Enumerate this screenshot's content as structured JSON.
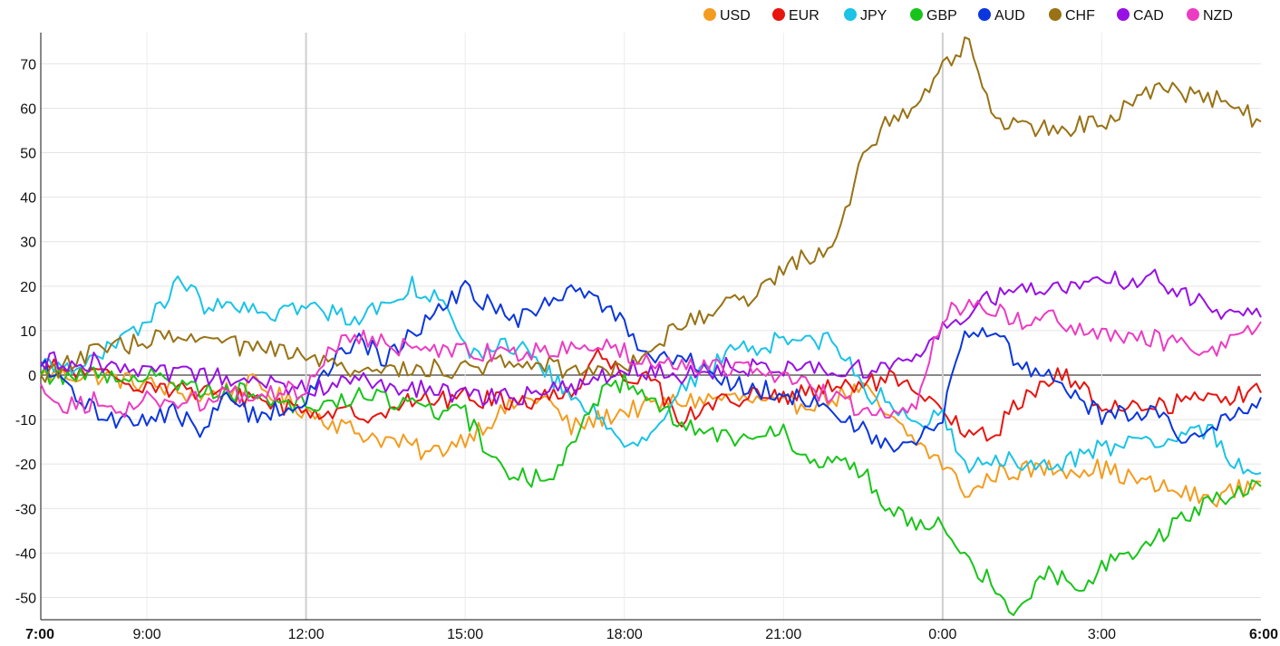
{
  "chart_data": {
    "type": "line",
    "title": "",
    "xlabel": "",
    "ylabel": "",
    "ylim": [
      -55,
      77
    ],
    "y_ticks": [
      70,
      60,
      50,
      40,
      30,
      20,
      10,
      0,
      -10,
      -20,
      -30,
      -40,
      -50
    ],
    "x_ticks": [
      {
        "label": "7:00",
        "h": 0,
        "bold": true
      },
      {
        "label": "9:00",
        "h": 2
      },
      {
        "label": "12:00",
        "h": 5
      },
      {
        "label": "15:00",
        "h": 8
      },
      {
        "label": "18:00",
        "h": 11
      },
      {
        "label": "21:00",
        "h": 14
      },
      {
        "label": "0:00",
        "h": 17
      },
      {
        "label": "3:00",
        "h": 20
      },
      {
        "label": "6:00",
        "h": 23,
        "bold": true
      }
    ],
    "x_unit": "hours from 7:00",
    "grid": true,
    "legend_position": "top-right",
    "series": [
      {
        "name": "USD",
        "color": "#f39c1f",
        "points": [
          [
            0,
            0
          ],
          [
            1,
            0
          ],
          [
            2,
            -2
          ],
          [
            3,
            -5
          ],
          [
            4,
            -2
          ],
          [
            5,
            -8
          ],
          [
            6,
            -13
          ],
          [
            7,
            -16
          ],
          [
            7.3,
            -18
          ],
          [
            8,
            -14
          ],
          [
            8.5,
            -10
          ],
          [
            9,
            -6
          ],
          [
            9.5,
            -5
          ],
          [
            10,
            -12
          ],
          [
            11,
            -8
          ],
          [
            11.5,
            -7
          ],
          [
            12,
            -6
          ],
          [
            13,
            -5
          ],
          [
            14,
            -7
          ],
          [
            15,
            -5
          ],
          [
            15.5,
            -3
          ],
          [
            16,
            -10
          ],
          [
            16.5,
            -15
          ],
          [
            17,
            -20
          ],
          [
            17.5,
            -27
          ],
          [
            18,
            -22
          ],
          [
            19,
            -21
          ],
          [
            20,
            -21
          ],
          [
            21,
            -25
          ],
          [
            22,
            -28
          ],
          [
            23,
            -24
          ],
          [
            23,
            -21
          ]
        ]
      },
      {
        "name": "EUR",
        "color": "#e8140f",
        "points": [
          [
            0,
            2
          ],
          [
            1,
            0
          ],
          [
            2,
            -2
          ],
          [
            3,
            -4
          ],
          [
            4,
            -5
          ],
          [
            5,
            -8
          ],
          [
            6,
            -9
          ],
          [
            7,
            -6
          ],
          [
            8,
            -5
          ],
          [
            9,
            -6
          ],
          [
            9.5,
            -5
          ],
          [
            10,
            -4
          ],
          [
            10.5,
            5
          ],
          [
            11,
            0
          ],
          [
            11.5,
            0
          ],
          [
            12,
            -10
          ],
          [
            13,
            -5
          ],
          [
            14,
            -5
          ],
          [
            15,
            -3
          ],
          [
            16,
            -1
          ],
          [
            17,
            -8
          ],
          [
            17.5,
            -14
          ],
          [
            18,
            -13
          ],
          [
            18.5,
            -5
          ],
          [
            19,
            -1
          ],
          [
            19.3,
            0
          ],
          [
            20,
            -7
          ],
          [
            21,
            -7
          ],
          [
            22,
            -5
          ],
          [
            23,
            -4
          ],
          [
            23,
            -5
          ]
        ]
      },
      {
        "name": "JPY",
        "color": "#1bc3e6",
        "points": [
          [
            0,
            2
          ],
          [
            1,
            3
          ],
          [
            2,
            12
          ],
          [
            2.7,
            22
          ],
          [
            3,
            16
          ],
          [
            3.5,
            15
          ],
          [
            4,
            14
          ],
          [
            5,
            15
          ],
          [
            6,
            13
          ],
          [
            7,
            20
          ],
          [
            7.5,
            18
          ],
          [
            8,
            5
          ],
          [
            9,
            7
          ],
          [
            10,
            -5
          ],
          [
            11,
            -14
          ],
          [
            11.5,
            -14
          ],
          [
            12,
            -4
          ],
          [
            13,
            5
          ],
          [
            14,
            8
          ],
          [
            15,
            8
          ],
          [
            15.5,
            -4
          ],
          [
            16,
            -5
          ],
          [
            16.5,
            -12
          ],
          [
            17,
            -9
          ],
          [
            17.5,
            -21
          ],
          [
            18,
            -19
          ],
          [
            19,
            -21
          ],
          [
            20,
            -16
          ],
          [
            21,
            -16
          ],
          [
            22,
            -12
          ],
          [
            22.5,
            -20
          ],
          [
            23,
            -22
          ],
          [
            23,
            -25
          ]
        ]
      },
      {
        "name": "GBP",
        "color": "#19c41a",
        "points": [
          [
            0,
            0
          ],
          [
            1,
            0
          ],
          [
            2,
            0
          ],
          [
            3,
            -3
          ],
          [
            4,
            -4
          ],
          [
            5,
            -7
          ],
          [
            6,
            -5
          ],
          [
            7,
            -6
          ],
          [
            7.5,
            -8
          ],
          [
            8,
            -9
          ],
          [
            8.7,
            -22
          ],
          [
            9.2,
            -23
          ],
          [
            9.6,
            -24
          ],
          [
            10,
            -15
          ],
          [
            10.3,
            -7
          ],
          [
            11,
            -1
          ],
          [
            11.5,
            -4
          ],
          [
            12,
            -11
          ],
          [
            13,
            -14
          ],
          [
            14,
            -11
          ],
          [
            14.3,
            -20
          ],
          [
            15,
            -19
          ],
          [
            15.5,
            -22
          ],
          [
            16,
            -30
          ],
          [
            16.5,
            -33
          ],
          [
            17,
            -32
          ],
          [
            17.5,
            -42
          ],
          [
            18,
            -47
          ],
          [
            18.3,
            -54
          ],
          [
            18.8,
            -46
          ],
          [
            19,
            -44
          ],
          [
            19.5,
            -48
          ],
          [
            20,
            -43
          ],
          [
            21,
            -37
          ],
          [
            21.5,
            -33
          ],
          [
            22,
            -28
          ],
          [
            23,
            -25
          ],
          [
            23,
            -27
          ]
        ]
      },
      {
        "name": "AUD",
        "color": "#0b36df",
        "points": [
          [
            0,
            2
          ],
          [
            0.5,
            -3
          ],
          [
            1,
            -8
          ],
          [
            1.5,
            -10
          ],
          [
            2,
            -10
          ],
          [
            2.5,
            -8
          ],
          [
            3,
            -13
          ],
          [
            3.5,
            -5
          ],
          [
            4,
            -9
          ],
          [
            5,
            -6
          ],
          [
            5.5,
            3
          ],
          [
            6,
            8
          ],
          [
            6.5,
            3
          ],
          [
            7,
            10
          ],
          [
            8,
            19
          ],
          [
            9,
            12
          ],
          [
            10,
            20
          ],
          [
            11,
            12
          ],
          [
            11.5,
            3
          ],
          [
            12,
            5
          ],
          [
            13,
            -2
          ],
          [
            14,
            -4
          ],
          [
            15,
            -8
          ],
          [
            16,
            -17
          ],
          [
            16.5,
            -15
          ],
          [
            17,
            -10
          ],
          [
            17.3,
            7
          ],
          [
            17.5,
            10
          ],
          [
            18,
            10
          ],
          [
            18.5,
            1
          ],
          [
            19,
            -1
          ],
          [
            20,
            -9
          ],
          [
            21,
            -8
          ],
          [
            21.5,
            -14
          ],
          [
            22,
            -13
          ],
          [
            23,
            -5
          ]
        ]
      },
      {
        "name": "CHF",
        "color": "#987214",
        "points": [
          [
            0,
            0
          ],
          [
            1,
            5
          ],
          [
            2,
            8
          ],
          [
            3,
            8
          ],
          [
            4,
            6
          ],
          [
            5,
            4
          ],
          [
            6,
            0
          ],
          [
            7,
            2
          ],
          [
            8,
            1
          ],
          [
            9,
            4
          ],
          [
            10,
            1
          ],
          [
            11,
            2
          ],
          [
            12,
            11
          ],
          [
            13,
            16
          ],
          [
            13.5,
            18
          ],
          [
            14,
            24
          ],
          [
            15,
            30
          ],
          [
            15.5,
            50
          ],
          [
            16,
            58
          ],
          [
            16.5,
            60
          ],
          [
            17,
            70
          ],
          [
            17.5,
            75
          ],
          [
            18,
            57
          ],
          [
            19,
            55
          ],
          [
            20,
            57
          ],
          [
            21,
            64
          ],
          [
            22,
            63
          ],
          [
            23,
            57
          ]
        ]
      },
      {
        "name": "CAD",
        "color": "#9711e4",
        "points": [
          [
            0,
            3
          ],
          [
            1,
            3
          ],
          [
            2,
            0
          ],
          [
            3,
            0
          ],
          [
            4,
            -2
          ],
          [
            5,
            -3
          ],
          [
            6,
            -1
          ],
          [
            7,
            -3
          ],
          [
            8,
            -5
          ],
          [
            9,
            -5
          ],
          [
            10,
            -3
          ],
          [
            11,
            2
          ],
          [
            12,
            0
          ],
          [
            13,
            2
          ],
          [
            14,
            2
          ],
          [
            15,
            1
          ],
          [
            16,
            2
          ],
          [
            16.5,
            3
          ],
          [
            17,
            10
          ],
          [
            17.5,
            15
          ],
          [
            18,
            18
          ],
          [
            19,
            19
          ],
          [
            20,
            21
          ],
          [
            21,
            22
          ],
          [
            22,
            15
          ],
          [
            23,
            13
          ]
        ]
      },
      {
        "name": "NZD",
        "color": "#ec3cc2",
        "points": [
          [
            0,
            -2
          ],
          [
            0.5,
            -7
          ],
          [
            1,
            -6
          ],
          [
            1.5,
            -9
          ],
          [
            2,
            -5
          ],
          [
            3,
            -6
          ],
          [
            3.5,
            -4
          ],
          [
            4,
            -5
          ],
          [
            5,
            -3
          ],
          [
            5.5,
            7
          ],
          [
            6,
            8
          ],
          [
            7,
            6
          ],
          [
            8,
            5
          ],
          [
            9,
            5
          ],
          [
            10,
            6
          ],
          [
            10.5,
            8
          ],
          [
            11,
            5
          ],
          [
            12,
            2
          ],
          [
            13,
            2
          ],
          [
            14,
            -1
          ],
          [
            15,
            -5
          ],
          [
            15.5,
            -8
          ],
          [
            16,
            -10
          ],
          [
            16.5,
            -6
          ],
          [
            17,
            13
          ],
          [
            17.5,
            17
          ],
          [
            18,
            14
          ],
          [
            18.5,
            12
          ],
          [
            19,
            13
          ],
          [
            20,
            9
          ],
          [
            21,
            8
          ],
          [
            22,
            5
          ],
          [
            23,
            12
          ]
        ]
      }
    ]
  }
}
